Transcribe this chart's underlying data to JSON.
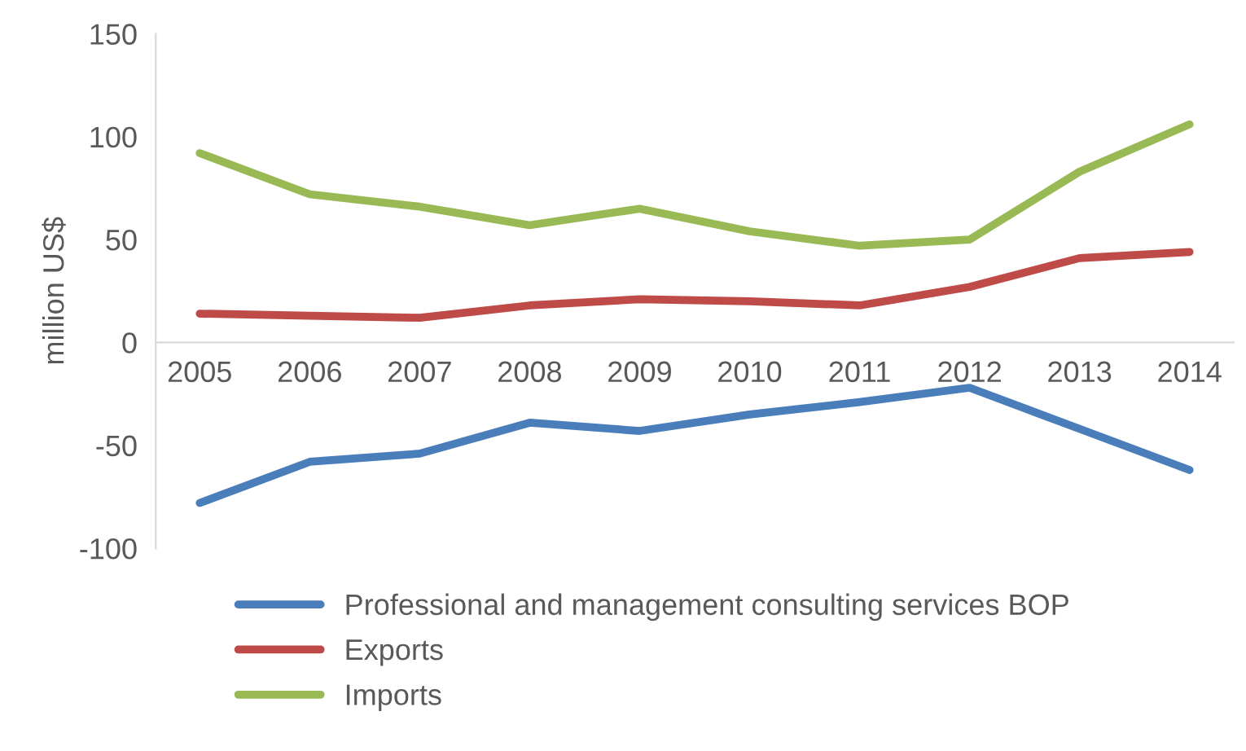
{
  "chart_data": {
    "type": "line",
    "ylabel": "million US$",
    "categories": [
      "2005",
      "2006",
      "2007",
      "2008",
      "2009",
      "2010",
      "2011",
      "2012",
      "2013",
      "2014"
    ],
    "series": [
      {
        "name": "Professional and management consulting services BOP",
        "color": "#4a7ebb",
        "values": [
          -78,
          -58,
          -54,
          -39,
          -43,
          -35,
          -29,
          -22,
          -42,
          -62
        ]
      },
      {
        "name": "Exports",
        "color": "#be4b48",
        "values": [
          14,
          13,
          12,
          18,
          21,
          20,
          18,
          27,
          41,
          44
        ]
      },
      {
        "name": "Imports",
        "color": "#98b954",
        "values": [
          92,
          72,
          66,
          57,
          65,
          54,
          47,
          50,
          83,
          106
        ]
      }
    ],
    "ylim": [
      -100,
      150
    ],
    "yticks": [
      -100,
      -50,
      0,
      50,
      100,
      150
    ],
    "grid": false,
    "legend": "bottom",
    "marker": "none",
    "line_style": "solid"
  }
}
